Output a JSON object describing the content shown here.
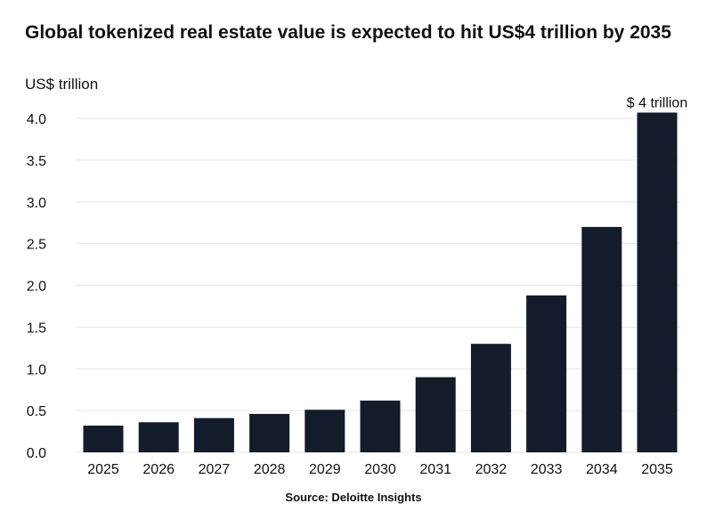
{
  "title": "Global tokenized real estate value is expected to hit US$4 trillion by 2035",
  "unit_label": "US$ trillion",
  "source": "Source: Deloitte Insights",
  "colors": {
    "bar": "#121c2b",
    "grid": "#e6e6e6",
    "text": "#111111"
  },
  "chart_data": {
    "type": "bar",
    "title": "Global tokenized real estate value is expected to hit US$4 trillion by 2035",
    "xlabel": "",
    "ylabel": "US$ trillion",
    "categories": [
      "2025",
      "2026",
      "2027",
      "2028",
      "2029",
      "2030",
      "2031",
      "2032",
      "2033",
      "2034",
      "2035"
    ],
    "values": [
      0.32,
      0.36,
      0.41,
      0.46,
      0.51,
      0.62,
      0.9,
      1.3,
      1.88,
      2.7,
      4.07
    ],
    "ylim": [
      0,
      4.0
    ],
    "yticks": [
      "0.0",
      "0.5",
      "1.0",
      "1.5",
      "2.0",
      "2.5",
      "3.0",
      "3.5",
      "4.0"
    ],
    "grid": true,
    "annotations": [
      {
        "category": "2035",
        "text": "$ 4 trillion"
      }
    ]
  }
}
